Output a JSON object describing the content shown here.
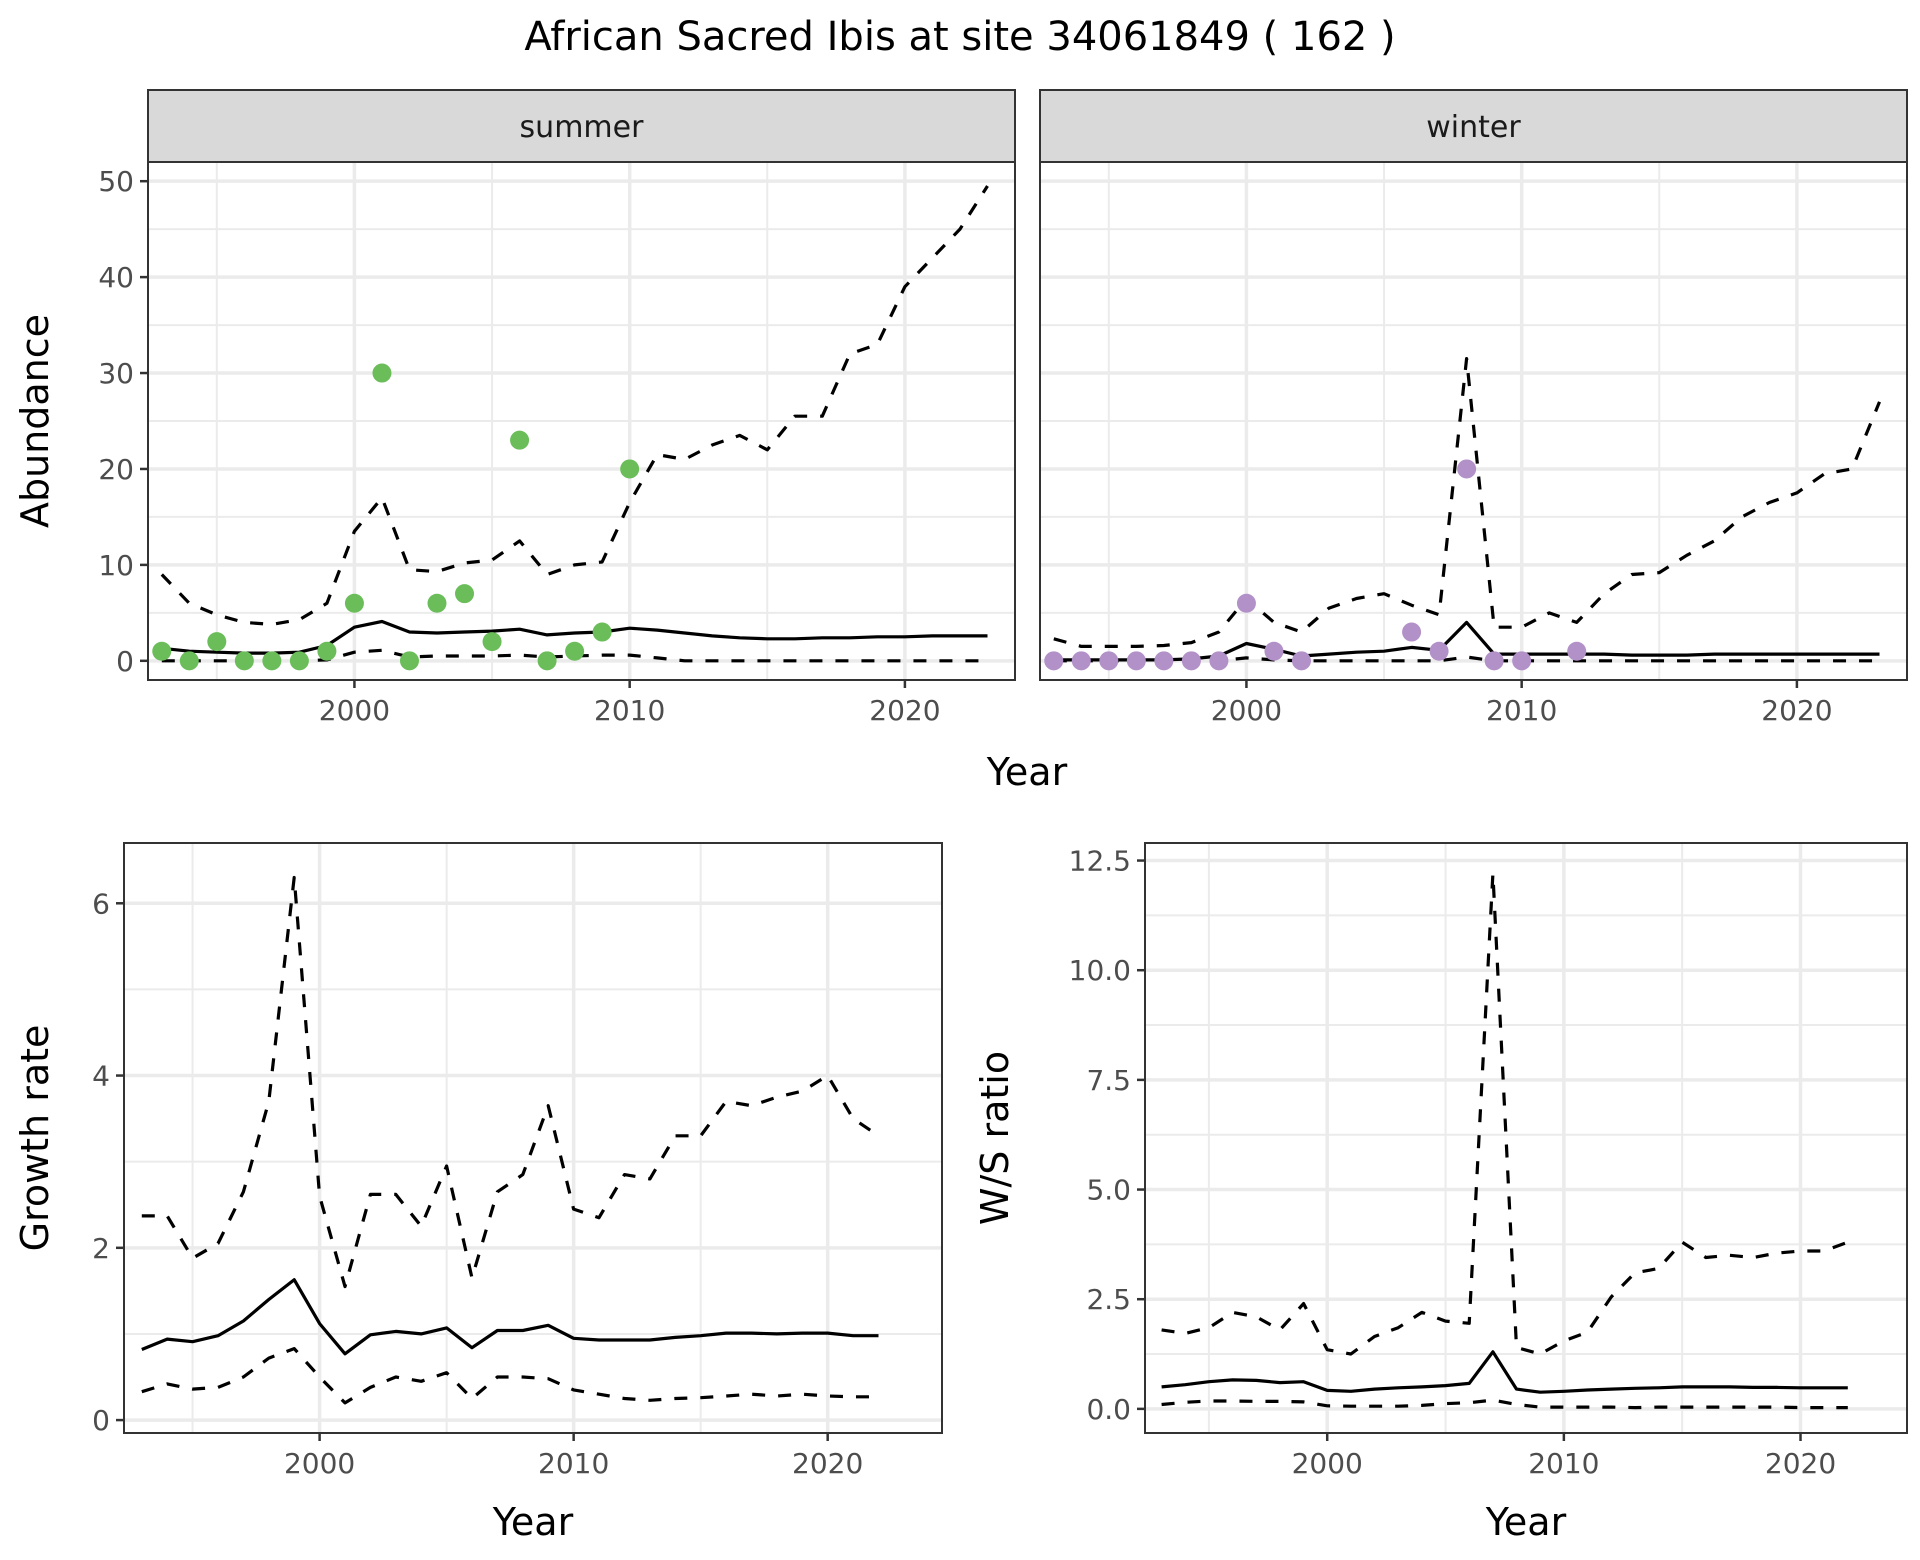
{
  "chart_data": {
    "title": "African Sacred Ibis at site 34061849 ( 162 )",
    "colors": {
      "summer_points": "#6BBD5A",
      "winter_points": "#B290C8",
      "line": "#000000",
      "strip_fill": "#D9D9D9",
      "grid": "#EBEBEB",
      "panel_border": "#333333",
      "tick_text": "#4D4D4D"
    },
    "top": {
      "type": "line",
      "ylabel": "Abundance",
      "xlabel": "Year",
      "xlim": [
        1992.5,
        2024
      ],
      "ylim": [
        -2,
        52
      ],
      "xticks": [
        2000,
        2010,
        2020
      ],
      "yticks": [
        0,
        10,
        20,
        30,
        40,
        50
      ],
      "ytick_labels": [
        "0",
        "10",
        "20",
        "30",
        "40",
        "50"
      ],
      "grid": true,
      "facets": [
        {
          "label": "summer",
          "series": [
            {
              "name": "upper",
              "style": "dashed",
              "x": [
                1993,
                1994,
                1995,
                1996,
                1997,
                1998,
                1999,
                2000,
                2001,
                2002,
                2003,
                2004,
                2005,
                2006,
                2007,
                2008,
                2009,
                2010,
                2011,
                2012,
                2013,
                2014,
                2015,
                2016,
                2017,
                2018,
                2019,
                2020,
                2021,
                2022,
                2023
              ],
              "y": [
                9,
                6,
                4.8,
                4,
                3.8,
                4.3,
                6,
                13.5,
                17,
                9.5,
                9.3,
                10.2,
                10.5,
                12.5,
                9,
                10,
                10.3,
                16.5,
                21.5,
                21,
                22.5,
                23.5,
                22,
                25.5,
                25.5,
                32,
                33,
                39,
                42,
                45,
                49.5
              ]
            },
            {
              "name": "mean",
              "style": "solid",
              "x": [
                1993,
                1994,
                1995,
                1996,
                1997,
                1998,
                1999,
                2000,
                2001,
                2002,
                2003,
                2004,
                2005,
                2006,
                2007,
                2008,
                2009,
                2010,
                2011,
                2012,
                2013,
                2014,
                2015,
                2016,
                2017,
                2018,
                2019,
                2020,
                2021,
                2022,
                2023
              ],
              "y": [
                1.3,
                1.0,
                0.9,
                0.8,
                0.8,
                0.9,
                1.6,
                3.5,
                4.1,
                3.0,
                2.9,
                3.0,
                3.1,
                3.3,
                2.7,
                2.9,
                3.0,
                3.4,
                3.2,
                2.9,
                2.6,
                2.4,
                2.3,
                2.3,
                2.4,
                2.4,
                2.5,
                2.5,
                2.6,
                2.6,
                2.6
              ]
            },
            {
              "name": "lower",
              "style": "dashed",
              "x": [
                1993,
                1994,
                1995,
                1996,
                1997,
                1998,
                1999,
                2000,
                2001,
                2002,
                2003,
                2004,
                2005,
                2006,
                2007,
                2008,
                2009,
                2010,
                2011,
                2012,
                2013,
                2014,
                2015,
                2016,
                2017,
                2018,
                2019,
                2020,
                2021,
                2022,
                2023
              ],
              "y": [
                0,
                0,
                0,
                0,
                0,
                0,
                0.1,
                0.9,
                1.1,
                0.4,
                0.5,
                0.5,
                0.5,
                0.6,
                0.4,
                0.5,
                0.6,
                0.6,
                0.3,
                0,
                0,
                0,
                0,
                0,
                0,
                0,
                0,
                0,
                0,
                0,
                0
              ]
            }
          ],
          "points": {
            "x": [
              1993,
              1994,
              1995,
              1996,
              1997,
              1998,
              1999,
              2000,
              2001,
              2002,
              2003,
              2004,
              2005,
              2006,
              2007,
              2008,
              2009,
              2010
            ],
            "y": [
              1,
              0,
              2,
              0,
              0,
              0,
              1,
              6,
              30,
              0,
              6,
              7,
              2,
              23,
              0,
              1,
              3,
              20
            ]
          }
        },
        {
          "label": "winter",
          "series": [
            {
              "name": "upper",
              "style": "dashed",
              "x": [
                1993,
                1994,
                1995,
                1996,
                1997,
                1998,
                1999,
                2000,
                2001,
                2002,
                2003,
                2004,
                2005,
                2006,
                2007,
                2008,
                2009,
                2010,
                2011,
                2012,
                2013,
                2014,
                2015,
                2016,
                2017,
                2018,
                2019,
                2020,
                2021,
                2022,
                2023
              ],
              "y": [
                2.3,
                1.5,
                1.5,
                1.5,
                1.6,
                1.9,
                3.0,
                6.5,
                4.0,
                3.0,
                5.5,
                6.5,
                7.0,
                5.8,
                4.8,
                31.5,
                3.5,
                3.5,
                5.0,
                4.0,
                7.0,
                9.0,
                9.2,
                11.0,
                12.5,
                15.0,
                16.5,
                17.5,
                19.5,
                20.0,
                27.0
              ]
            },
            {
              "name": "mean",
              "style": "solid",
              "x": [
                1993,
                1994,
                1995,
                1996,
                1997,
                1998,
                1999,
                2000,
                2001,
                2002,
                2003,
                2004,
                2005,
                2006,
                2007,
                2008,
                2009,
                2010,
                2011,
                2012,
                2013,
                2014,
                2015,
                2016,
                2017,
                2018,
                2019,
                2020,
                2021,
                2022,
                2023
              ],
              "y": [
                0.1,
                0.1,
                0.1,
                0.1,
                0.1,
                0.2,
                0.5,
                1.8,
                1.2,
                0.5,
                0.7,
                0.9,
                1.0,
                1.4,
                1.1,
                4.0,
                0.7,
                0.7,
                0.7,
                0.7,
                0.7,
                0.6,
                0.6,
                0.6,
                0.7,
                0.7,
                0.7,
                0.7,
                0.7,
                0.7,
                0.7
              ]
            },
            {
              "name": "lower",
              "style": "dashed",
              "x": [
                1993,
                1994,
                1995,
                1996,
                1997,
                1998,
                1999,
                2000,
                2001,
                2002,
                2003,
                2004,
                2005,
                2006,
                2007,
                2008,
                2009,
                2010,
                2011,
                2012,
                2013,
                2014,
                2015,
                2016,
                2017,
                2018,
                2019,
                2020,
                2021,
                2022,
                2023
              ],
              "y": [
                0,
                0,
                0,
                0,
                0,
                0,
                0,
                0.3,
                0.1,
                0,
                0,
                0,
                0,
                0,
                0,
                0.4,
                0,
                0,
                0,
                0,
                0,
                0,
                0,
                0,
                0,
                0,
                0,
                0,
                0,
                0,
                0
              ]
            }
          ],
          "points": {
            "x": [
              1993,
              1994,
              1995,
              1996,
              1997,
              1998,
              1999,
              2000,
              2001,
              2002,
              2006,
              2007,
              2008,
              2009,
              2010,
              2012
            ],
            "y": [
              0,
              0,
              0,
              0,
              0,
              0,
              0,
              6,
              1,
              0,
              3,
              1,
              20,
              0,
              0,
              1
            ]
          }
        }
      ]
    },
    "growth": {
      "type": "line",
      "ylabel": "Growth rate",
      "xlabel": "Year",
      "xlim": [
        1992.3,
        2024.5
      ],
      "ylim": [
        -0.15,
        6.7
      ],
      "xticks": [
        2000,
        2010,
        2020
      ],
      "yticks": [
        0,
        2,
        4,
        6
      ],
      "ytick_labels": [
        "0",
        "2",
        "4",
        "6"
      ],
      "grid": true,
      "series": [
        {
          "name": "upper",
          "style": "dashed",
          "x": [
            1993,
            1994,
            1995,
            1996,
            1997,
            1998,
            1999,
            2000,
            2001,
            2002,
            2003,
            2004,
            2005,
            2006,
            2007,
            2008,
            2009,
            2010,
            2011,
            2012,
            2013,
            2014,
            2015,
            2016,
            2017,
            2018,
            2019,
            2020,
            2021,
            2022
          ],
          "y": [
            2.37,
            2.37,
            1.88,
            2.05,
            2.65,
            3.7,
            6.3,
            2.6,
            1.55,
            2.62,
            2.62,
            2.25,
            2.95,
            1.65,
            2.65,
            2.85,
            3.65,
            2.45,
            2.35,
            2.85,
            2.8,
            3.3,
            3.3,
            3.7,
            3.65,
            3.75,
            3.82,
            4.0,
            3.5,
            3.3
          ]
        },
        {
          "name": "mean",
          "style": "solid",
          "x": [
            1993,
            1994,
            1995,
            1996,
            1997,
            1998,
            1999,
            2000,
            2001,
            2002,
            2003,
            2004,
            2005,
            2006,
            2007,
            2008,
            2009,
            2010,
            2011,
            2012,
            2013,
            2014,
            2015,
            2016,
            2017,
            2018,
            2019,
            2020,
            2021,
            2022
          ],
          "y": [
            0.82,
            0.94,
            0.91,
            0.98,
            1.15,
            1.4,
            1.63,
            1.12,
            0.77,
            0.99,
            1.03,
            1.0,
            1.07,
            0.84,
            1.04,
            1.04,
            1.1,
            0.95,
            0.93,
            0.93,
            0.93,
            0.96,
            0.98,
            1.01,
            1.01,
            1.0,
            1.01,
            1.01,
            0.98,
            0.98
          ]
        },
        {
          "name": "lower",
          "style": "dashed",
          "x": [
            1993,
            1994,
            1995,
            1996,
            1997,
            1998,
            1999,
            2000,
            2001,
            2002,
            2003,
            2004,
            2005,
            2006,
            2007,
            2008,
            2009,
            2010,
            2011,
            2012,
            2013,
            2014,
            2015,
            2016,
            2017,
            2018,
            2019,
            2020,
            2021,
            2022
          ],
          "y": [
            0.33,
            0.42,
            0.36,
            0.38,
            0.5,
            0.72,
            0.83,
            0.5,
            0.2,
            0.38,
            0.5,
            0.45,
            0.55,
            0.25,
            0.5,
            0.5,
            0.48,
            0.35,
            0.3,
            0.25,
            0.23,
            0.25,
            0.26,
            0.28,
            0.3,
            0.28,
            0.3,
            0.28,
            0.27,
            0.27
          ]
        }
      ]
    },
    "ratio": {
      "type": "line",
      "ylabel": "W/S ratio",
      "xlabel": "Year",
      "xlim": [
        1992.3,
        2024.5
      ],
      "ylim": [
        -0.55,
        12.9
      ],
      "xticks": [
        2000,
        2010,
        2020
      ],
      "yticks": [
        0,
        2.5,
        5,
        7.5,
        10,
        12.5
      ],
      "ytick_labels": [
        "0.0",
        "2.5",
        "5.0",
        "7.5",
        "10.0",
        "12.5"
      ],
      "grid": true,
      "series": [
        {
          "name": "upper",
          "style": "dashed",
          "x": [
            1993,
            1994,
            1995,
            1996,
            1997,
            1998,
            1999,
            2000,
            2001,
            2002,
            2003,
            2004,
            2005,
            2006,
            2007,
            2008,
            2009,
            2010,
            2011,
            2012,
            2013,
            2014,
            2015,
            2016,
            2017,
            2018,
            2019,
            2020,
            2021,
            2022
          ],
          "y": [
            1.8,
            1.72,
            1.85,
            2.2,
            2.1,
            1.8,
            2.4,
            1.35,
            1.25,
            1.65,
            1.85,
            2.2,
            2.0,
            1.95,
            12.2,
            1.4,
            1.25,
            1.55,
            1.75,
            2.55,
            3.1,
            3.2,
            3.8,
            3.45,
            3.5,
            3.45,
            3.55,
            3.6,
            3.6,
            3.8
          ]
        },
        {
          "name": "mean",
          "style": "solid",
          "x": [
            1993,
            1994,
            1995,
            1996,
            1997,
            1998,
            1999,
            2000,
            2001,
            2002,
            2003,
            2004,
            2005,
            2006,
            2007,
            2008,
            2009,
            2010,
            2011,
            2012,
            2013,
            2014,
            2015,
            2016,
            2017,
            2018,
            2019,
            2020,
            2021,
            2022
          ],
          "y": [
            0.5,
            0.55,
            0.62,
            0.66,
            0.65,
            0.6,
            0.62,
            0.42,
            0.4,
            0.45,
            0.48,
            0.5,
            0.53,
            0.58,
            1.3,
            0.45,
            0.38,
            0.4,
            0.43,
            0.45,
            0.47,
            0.48,
            0.5,
            0.5,
            0.5,
            0.49,
            0.49,
            0.48,
            0.48,
            0.48
          ]
        },
        {
          "name": "lower",
          "style": "dashed",
          "x": [
            1993,
            1994,
            1995,
            1996,
            1997,
            1998,
            1999,
            2000,
            2001,
            2002,
            2003,
            2004,
            2005,
            2006,
            2007,
            2008,
            2009,
            2010,
            2011,
            2012,
            2013,
            2014,
            2015,
            2016,
            2017,
            2018,
            2019,
            2020,
            2021,
            2022
          ],
          "y": [
            0.1,
            0.15,
            0.18,
            0.18,
            0.17,
            0.17,
            0.16,
            0.07,
            0.06,
            0.06,
            0.06,
            0.08,
            0.12,
            0.14,
            0.2,
            0.1,
            0.04,
            0.04,
            0.04,
            0.04,
            0.03,
            0.04,
            0.04,
            0.04,
            0.04,
            0.04,
            0.04,
            0.03,
            0.03,
            0.03
          ]
        }
      ]
    }
  }
}
